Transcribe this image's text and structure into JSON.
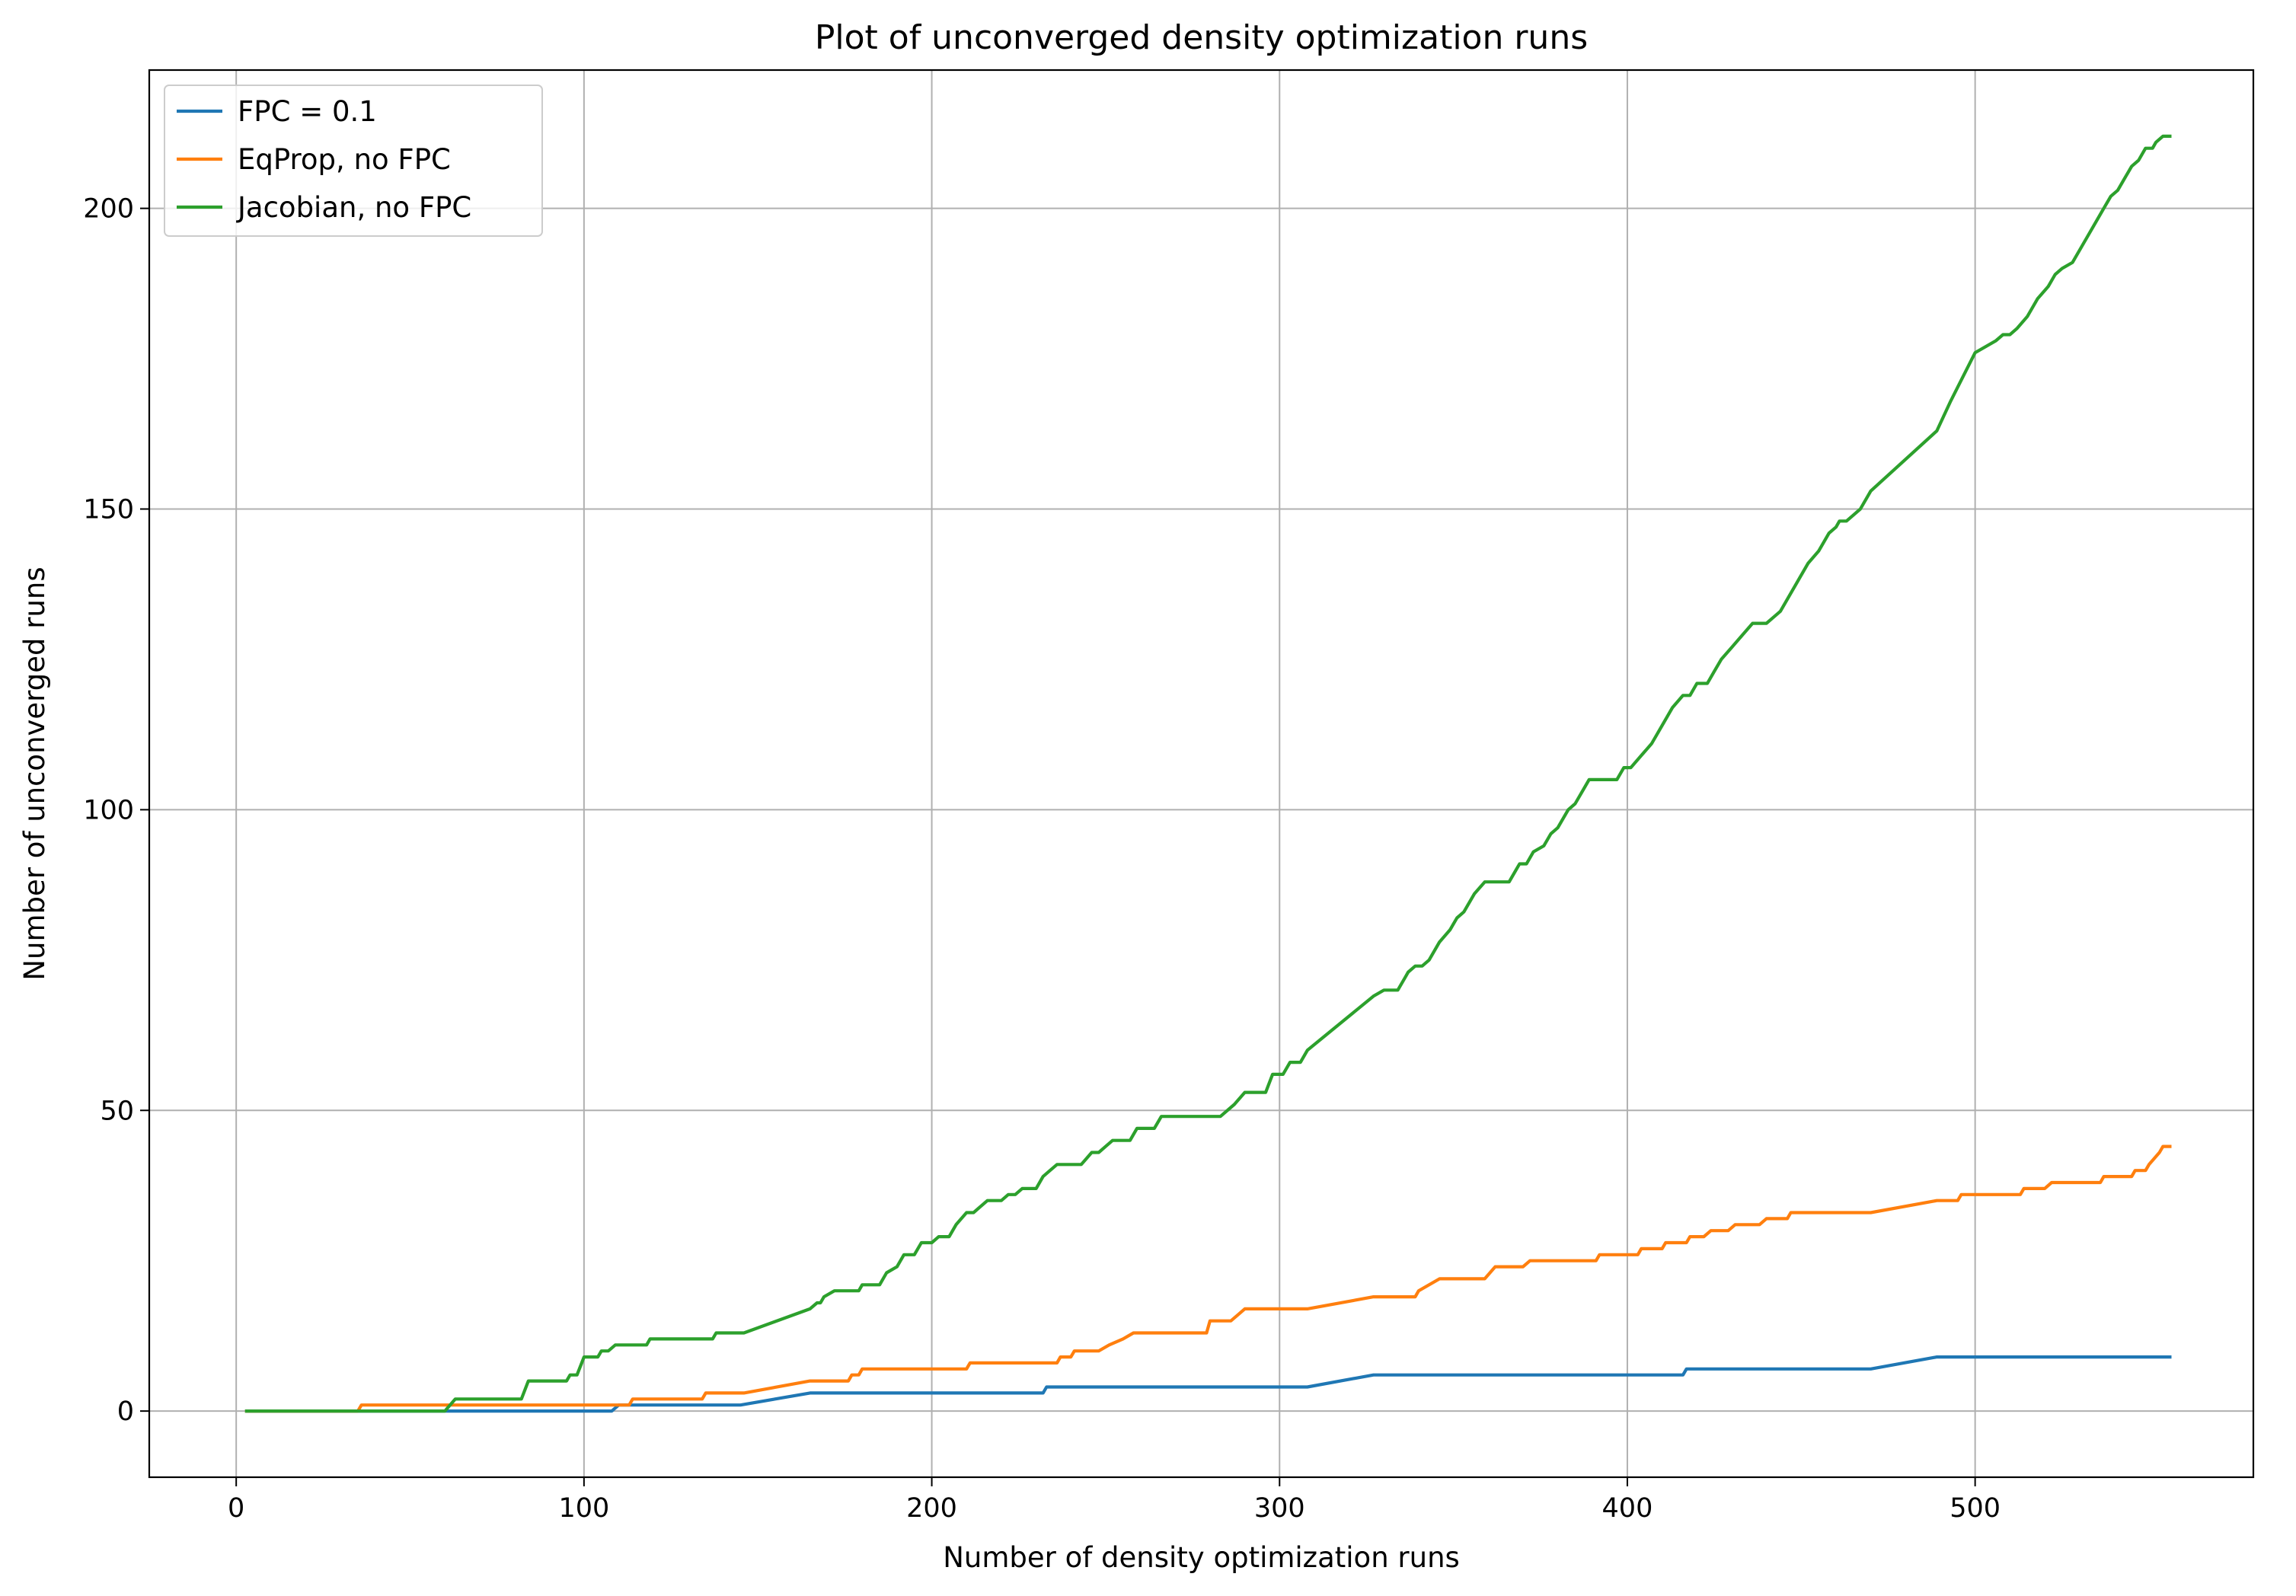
{
  "chart_data": {
    "type": "line",
    "title": "Plot of unconverged density optimization runs",
    "xlabel": "Number of density optimization runs",
    "ylabel": "Number of unconverged runs",
    "xlim": [
      -25,
      580
    ],
    "ylim": [
      -11,
      223
    ],
    "xticks": [
      0,
      100,
      200,
      300,
      400,
      500
    ],
    "yticks": [
      0,
      50,
      100,
      150,
      200
    ],
    "grid": true,
    "legend_position": "upper left",
    "series": [
      {
        "name": "FPC = 0.1",
        "color": "#1f77b4",
        "points": [
          [
            3,
            0
          ],
          [
            108,
            0
          ],
          [
            110,
            1
          ],
          [
            145,
            1
          ],
          [
            165,
            3
          ],
          [
            232,
            3
          ],
          [
            233,
            4
          ],
          [
            308,
            4
          ],
          [
            327,
            6
          ],
          [
            416,
            6
          ],
          [
            417,
            7
          ],
          [
            470,
            7
          ],
          [
            489,
            9
          ],
          [
            556,
            9
          ]
        ]
      },
      {
        "name": "EqProp, no FPC",
        "color": "#ff7f0e",
        "points": [
          [
            3,
            0
          ],
          [
            35,
            0
          ],
          [
            36,
            1
          ],
          [
            113,
            1
          ],
          [
            114,
            2
          ],
          [
            134,
            2
          ],
          [
            135,
            3
          ],
          [
            146,
            3
          ],
          [
            165,
            5
          ],
          [
            176,
            5
          ],
          [
            177,
            6
          ],
          [
            179,
            6
          ],
          [
            180,
            7
          ],
          [
            210,
            7
          ],
          [
            211,
            8
          ],
          [
            236,
            8
          ],
          [
            237,
            9
          ],
          [
            240,
            9
          ],
          [
            241,
            10
          ],
          [
            248,
            10
          ],
          [
            251,
            11
          ],
          [
            255,
            12
          ],
          [
            258,
            13
          ],
          [
            279,
            13
          ],
          [
            280,
            15
          ],
          [
            286,
            15
          ],
          [
            288,
            16
          ],
          [
            290,
            17
          ],
          [
            308,
            17
          ],
          [
            327,
            19
          ],
          [
            339,
            19
          ],
          [
            340,
            20
          ],
          [
            343,
            21
          ],
          [
            346,
            22
          ],
          [
            359,
            22
          ],
          [
            362,
            24
          ],
          [
            370,
            24
          ],
          [
            372,
            25
          ],
          [
            391,
            25
          ],
          [
            392,
            26
          ],
          [
            403,
            26
          ],
          [
            404,
            27
          ],
          [
            410,
            27
          ],
          [
            411,
            28
          ],
          [
            417,
            28
          ],
          [
            418,
            29
          ],
          [
            422,
            29
          ],
          [
            424,
            30
          ],
          [
            429,
            30
          ],
          [
            431,
            31
          ],
          [
            438,
            31
          ],
          [
            440,
            32
          ],
          [
            446,
            32
          ],
          [
            447,
            33
          ],
          [
            470,
            33
          ],
          [
            489,
            35
          ],
          [
            495,
            35
          ],
          [
            496,
            36
          ],
          [
            513,
            36
          ],
          [
            514,
            37
          ],
          [
            520,
            37
          ],
          [
            522,
            38
          ],
          [
            536,
            38
          ],
          [
            537,
            39
          ],
          [
            545,
            39
          ],
          [
            546,
            40
          ],
          [
            549,
            40
          ],
          [
            550,
            41
          ],
          [
            553,
            43
          ],
          [
            554,
            44
          ],
          [
            556,
            44
          ]
        ]
      },
      {
        "name": "Jacobian, no FPC",
        "color": "#2ca02c",
        "points": [
          [
            3,
            0
          ],
          [
            60,
            0
          ],
          [
            63,
            2
          ],
          [
            82,
            2
          ],
          [
            84,
            5
          ],
          [
            95,
            5
          ],
          [
            96,
            6
          ],
          [
            98,
            6
          ],
          [
            100,
            9
          ],
          [
            104,
            9
          ],
          [
            105,
            10
          ],
          [
            107,
            10
          ],
          [
            109,
            11
          ],
          [
            118,
            11
          ],
          [
            119,
            12
          ],
          [
            137,
            12
          ],
          [
            138,
            13
          ],
          [
            146,
            13
          ],
          [
            165,
            17
          ],
          [
            167,
            18
          ],
          [
            168,
            18
          ],
          [
            169,
            19
          ],
          [
            172,
            20
          ],
          [
            179,
            20
          ],
          [
            180,
            21
          ],
          [
            185,
            21
          ],
          [
            187,
            23
          ],
          [
            190,
            24
          ],
          [
            192,
            26
          ],
          [
            195,
            26
          ],
          [
            197,
            28
          ],
          [
            200,
            28
          ],
          [
            202,
            29
          ],
          [
            205,
            29
          ],
          [
            207,
            31
          ],
          [
            210,
            33
          ],
          [
            212,
            33
          ],
          [
            214,
            34
          ],
          [
            216,
            35
          ],
          [
            220,
            35
          ],
          [
            222,
            36
          ],
          [
            224,
            36
          ],
          [
            226,
            37
          ],
          [
            230,
            37
          ],
          [
            232,
            39
          ],
          [
            234,
            40
          ],
          [
            236,
            41
          ],
          [
            243,
            41
          ],
          [
            246,
            43
          ],
          [
            248,
            43
          ],
          [
            250,
            44
          ],
          [
            252,
            45
          ],
          [
            257,
            45
          ],
          [
            259,
            47
          ],
          [
            264,
            47
          ],
          [
            266,
            49
          ],
          [
            283,
            49
          ],
          [
            287,
            51
          ],
          [
            290,
            53
          ],
          [
            296,
            53
          ],
          [
            298,
            56
          ],
          [
            301,
            56
          ],
          [
            303,
            58
          ],
          [
            306,
            58
          ],
          [
            308,
            60
          ],
          [
            327,
            69
          ],
          [
            330,
            70
          ],
          [
            334,
            70
          ],
          [
            336,
            72
          ],
          [
            337,
            73
          ],
          [
            339,
            74
          ],
          [
            341,
            74
          ],
          [
            343,
            75
          ],
          [
            346,
            78
          ],
          [
            349,
            80
          ],
          [
            351,
            82
          ],
          [
            353,
            83
          ],
          [
            356,
            86
          ],
          [
            359,
            88
          ],
          [
            366,
            88
          ],
          [
            368,
            90
          ],
          [
            369,
            91
          ],
          [
            371,
            91
          ],
          [
            373,
            93
          ],
          [
            376,
            94
          ],
          [
            378,
            96
          ],
          [
            380,
            97
          ],
          [
            383,
            100
          ],
          [
            385,
            101
          ],
          [
            387,
            103
          ],
          [
            389,
            105
          ],
          [
            397,
            105
          ],
          [
            399,
            107
          ],
          [
            401,
            107
          ],
          [
            404,
            109
          ],
          [
            407,
            111
          ],
          [
            410,
            114
          ],
          [
            413,
            117
          ],
          [
            416,
            119
          ],
          [
            418,
            119
          ],
          [
            420,
            121
          ],
          [
            423,
            121
          ],
          [
            425,
            123
          ],
          [
            427,
            125
          ],
          [
            430,
            127
          ],
          [
            433,
            129
          ],
          [
            436,
            131
          ],
          [
            440,
            131
          ],
          [
            442,
            132
          ],
          [
            444,
            133
          ],
          [
            449,
            138
          ],
          [
            452,
            141
          ],
          [
            455,
            143
          ],
          [
            458,
            146
          ],
          [
            460,
            147
          ],
          [
            461,
            148
          ],
          [
            463,
            148
          ],
          [
            465,
            149
          ],
          [
            467,
            150
          ],
          [
            470,
            153
          ],
          [
            489,
            163
          ],
          [
            493,
            168
          ],
          [
            500,
            176
          ],
          [
            503,
            177
          ],
          [
            506,
            178
          ],
          [
            508,
            179
          ],
          [
            510,
            179
          ],
          [
            512,
            180
          ],
          [
            515,
            182
          ],
          [
            518,
            185
          ],
          [
            521,
            187
          ],
          [
            523,
            189
          ],
          [
            525,
            190
          ],
          [
            528,
            191
          ],
          [
            531,
            194
          ],
          [
            534,
            197
          ],
          [
            537,
            200
          ],
          [
            539,
            202
          ],
          [
            541,
            203
          ],
          [
            543,
            205
          ],
          [
            545,
            207
          ],
          [
            547,
            208
          ],
          [
            549,
            210
          ],
          [
            551,
            210
          ],
          [
            552,
            211
          ],
          [
            554,
            212
          ],
          [
            556,
            212
          ]
        ]
      }
    ]
  }
}
